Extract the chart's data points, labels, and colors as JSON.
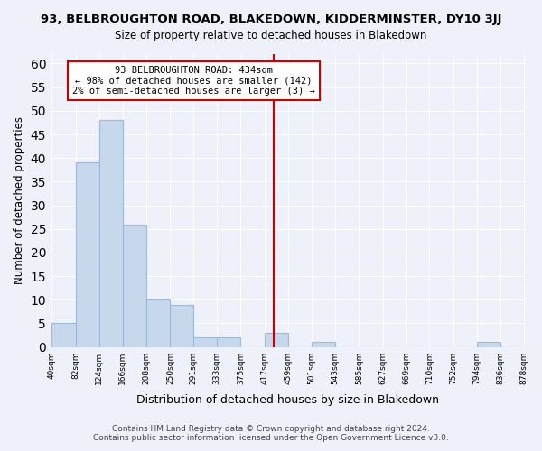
{
  "title": "93, BELBROUGHTON ROAD, BLAKEDOWN, KIDDERMINSTER, DY10 3JJ",
  "subtitle": "Size of property relative to detached houses in Blakedown",
  "xlabel": "Distribution of detached houses by size in Blakedown",
  "ylabel": "Number of detached properties",
  "bin_edges": [
    40,
    82,
    124,
    166,
    208,
    250,
    291,
    333,
    375,
    417,
    459,
    501,
    543,
    585,
    627,
    669,
    710,
    752,
    794,
    836,
    878
  ],
  "bin_counts": [
    5,
    39,
    48,
    26,
    10,
    9,
    2,
    2,
    0,
    3,
    0,
    1,
    0,
    0,
    0,
    0,
    0,
    0,
    1,
    0
  ],
  "bar_color": "#c8d8ec",
  "bar_edge_color": "#a0b8d8",
  "reference_line_x": 434,
  "reference_line_color": "#cc0000",
  "annotation_text": "93 BELBROUGHTON ROAD: 434sqm\n← 98% of detached houses are smaller (142)\n2% of semi-detached houses are larger (3) →",
  "annotation_box_color": "#ffffff",
  "annotation_box_edge_color": "#cc0000",
  "ylim": [
    0,
    62
  ],
  "yticks": [
    0,
    5,
    10,
    15,
    20,
    25,
    30,
    35,
    40,
    45,
    50,
    55,
    60
  ],
  "footer_line1": "Contains HM Land Registry data © Crown copyright and database right 2024.",
  "footer_line2": "Contains public sector information licensed under the Open Government Licence v3.0.",
  "background_color": "#eef1f9"
}
